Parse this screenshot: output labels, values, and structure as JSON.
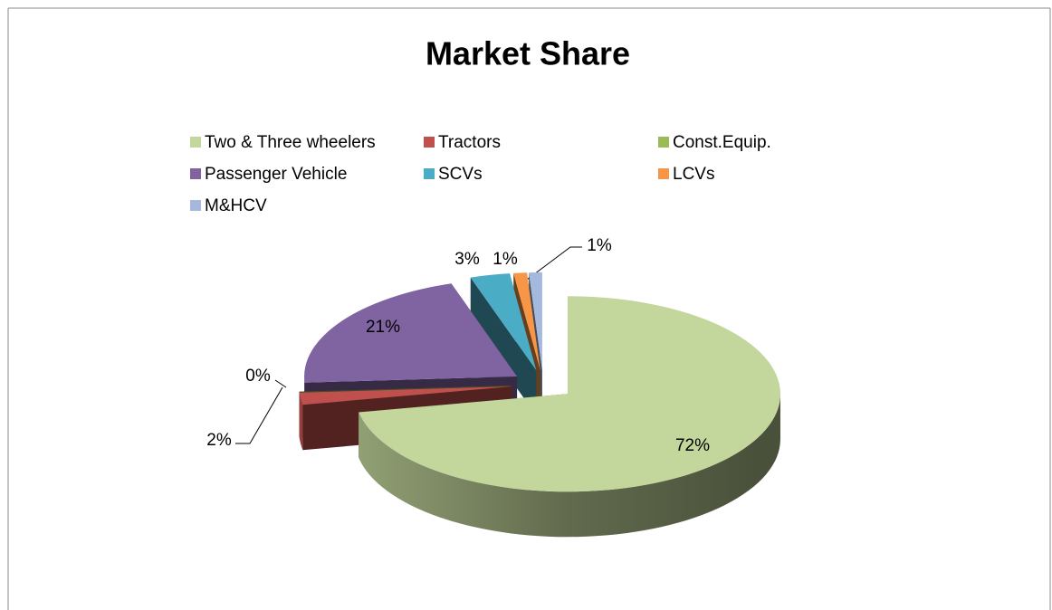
{
  "chart_data": {
    "type": "pie",
    "title": "Market Share",
    "categories": [
      "Two & Three wheelers",
      "Tractors",
      "Const.Equip.",
      "Passenger Vehicle",
      "SCVs",
      "LCVs",
      "M&HCV"
    ],
    "values": [
      72,
      2,
      0,
      21,
      3,
      1,
      1
    ],
    "value_labels": [
      "72%",
      "2%",
      "0%",
      "21%",
      "3%",
      "1%",
      "1%"
    ],
    "colors": [
      "#c3d69b",
      "#c0504d",
      "#9bbb59",
      "#8064a2",
      "#4bacc6",
      "#f79646",
      "#a5b8de"
    ],
    "legend": "top"
  }
}
